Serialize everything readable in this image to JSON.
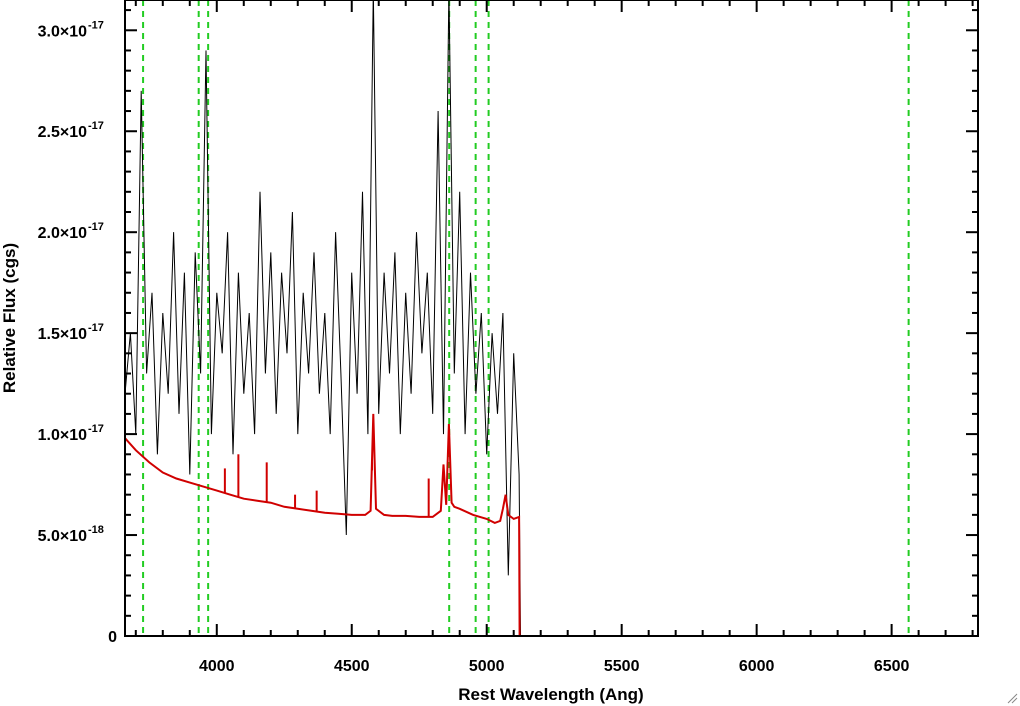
{
  "chart_data": {
    "type": "line",
    "xlabel": "Rest Wavelength (Ang)",
    "ylabel": "Relative Flux (cgs)",
    "xlim": [
      3660,
      6820
    ],
    "ylim": [
      0,
      3.15e-17
    ],
    "x_ticks": [
      {
        "value": 4000,
        "label": "4000"
      },
      {
        "value": 4500,
        "label": "4500"
      },
      {
        "value": 5000,
        "label": "5000"
      },
      {
        "value": 5500,
        "label": "5500"
      },
      {
        "value": 6000,
        "label": "6000"
      },
      {
        "value": 6500,
        "label": "6500"
      }
    ],
    "y_ticks": [
      {
        "value": 0,
        "label": "0",
        "exponent": ""
      },
      {
        "value": 5e-18,
        "label": "5.0×10",
        "exponent": "-18"
      },
      {
        "value": 1e-17,
        "label": "1.0×10",
        "exponent": "-17"
      },
      {
        "value": 1.5e-17,
        "label": "1.5×10",
        "exponent": "-17"
      },
      {
        "value": 2e-17,
        "label": "2.0×10",
        "exponent": "-17"
      },
      {
        "value": 2.5e-17,
        "label": "2.5×10",
        "exponent": "-17"
      },
      {
        "value": 3e-17,
        "label": "3.0×10",
        "exponent": "-17"
      }
    ],
    "vertical_lines": [
      3727,
      3933,
      3968,
      4861,
      4959,
      5007,
      6563
    ],
    "series": [
      {
        "color": "#000000",
        "style": "noisy spectrum",
        "x": [
          3660,
          3680,
          3700,
          3720,
          3740,
          3760,
          3780,
          3800,
          3820,
          3840,
          3860,
          3880,
          3900,
          3920,
          3940,
          3960,
          3980,
          4000,
          4020,
          4040,
          4060,
          4080,
          4100,
          4120,
          4140,
          4160,
          4180,
          4200,
          4220,
          4240,
          4260,
          4280,
          4300,
          4320,
          4340,
          4360,
          4380,
          4400,
          4420,
          4440,
          4460,
          4480,
          4500,
          4520,
          4540,
          4560,
          4580,
          4600,
          4620,
          4640,
          4660,
          4680,
          4700,
          4720,
          4740,
          4760,
          4780,
          4800,
          4820,
          4840,
          4860,
          4880,
          4900,
          4920,
          4940,
          4960,
          4980,
          5000,
          5020,
          5040,
          5060,
          5080,
          5100,
          5120,
          5125,
          5500,
          6000,
          6500,
          6820
        ],
        "y": [
          1.2e-17,
          1.5e-17,
          1e-17,
          2.7e-17,
          1.3e-17,
          1.7e-17,
          9e-18,
          1.6e-17,
          1.2e-17,
          2e-17,
          1.1e-17,
          1.8e-17,
          8e-18,
          1.9e-17,
          1.3e-17,
          2.9e-17,
          1e-17,
          1.7e-17,
          1.4e-17,
          2e-17,
          9e-18,
          1.8e-17,
          1.2e-17,
          1.6e-17,
          1e-17,
          2.2e-17,
          1.3e-17,
          1.9e-17,
          1.1e-17,
          1.8e-17,
          1.4e-17,
          2.1e-17,
          1e-17,
          1.7e-17,
          1.3e-17,
          1.9e-17,
          1.2e-17,
          1.6e-17,
          1e-17,
          2e-17,
          1.3e-17,
          5e-18,
          1.8e-17,
          1.2e-17,
          2.2e-17,
          1e-17,
          3.2e-17,
          1.1e-17,
          1.8e-17,
          1.3e-17,
          1.9e-17,
          1e-17,
          1.7e-17,
          1.2e-17,
          2e-17,
          1.4e-17,
          1.8e-17,
          1.1e-17,
          2.6e-17,
          1e-17,
          3.2e-17,
          1.3e-17,
          2.2e-17,
          1e-17,
          1.8e-17,
          1.2e-17,
          1.6e-17,
          9e-18,
          1.5e-17,
          1.1e-17,
          1.6e-17,
          3e-18,
          1.4e-17,
          8e-18,
          0,
          0,
          0,
          0,
          0
        ]
      },
      {
        "color": "#d00000",
        "style": "model fit",
        "x": [
          3660,
          3700,
          3750,
          3800,
          3850,
          3900,
          3950,
          4000,
          4050,
          4100,
          4150,
          4200,
          4250,
          4300,
          4350,
          4400,
          4450,
          4500,
          4550,
          4570,
          4580,
          4590,
          4620,
          4650,
          4700,
          4750,
          4800,
          4830,
          4840,
          4850,
          4860,
          4870,
          4880,
          4900,
          4950,
          5000,
          5030,
          5050,
          5060,
          5070,
          5080,
          5100,
          5120,
          5122,
          6820
        ],
        "y": [
          9.8e-18,
          9.2e-18,
          8.6e-18,
          8.1e-18,
          7.8e-18,
          7.6e-18,
          7.4e-18,
          7.2e-18,
          7e-18,
          6.8e-18,
          6.7e-18,
          6.6e-18,
          6.4e-18,
          6.3e-18,
          6.2e-18,
          6.1e-18,
          6.05e-18,
          6e-18,
          6e-18,
          6.2e-18,
          1.1e-17,
          6.3e-18,
          6e-18,
          5.95e-18,
          5.95e-18,
          5.9e-18,
          5.9e-18,
          6.2e-18,
          8.5e-18,
          6.5e-18,
          1.05e-17,
          6.6e-18,
          6.4e-18,
          6.3e-18,
          6e-18,
          5.8e-18,
          5.6e-18,
          5.7e-18,
          6.3e-18,
          7e-18,
          6e-18,
          5.8e-18,
          5.9e-18,
          0,
          0
        ]
      }
    ],
    "emission_spikes": [
      {
        "x": 4030,
        "y": 8.3e-18
      },
      {
        "x": 4080,
        "y": 9e-18
      },
      {
        "x": 4185,
        "y": 8.6e-18
      },
      {
        "x": 4290,
        "y": 7e-18
      },
      {
        "x": 4370,
        "y": 7.2e-18
      },
      {
        "x": 4575,
        "y": 8.2e-18
      },
      {
        "x": 4785,
        "y": 7.8e-18
      }
    ]
  }
}
